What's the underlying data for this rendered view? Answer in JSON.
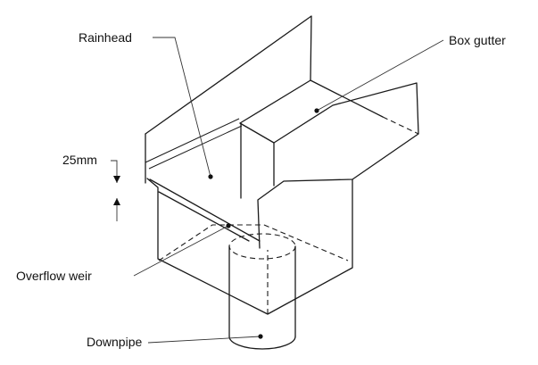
{
  "labels": {
    "rainhead": "Rainhead",
    "box_gutter": "Box gutter",
    "dimension": "25mm",
    "overflow_weir": "Overflow weir",
    "downpipe": "Downpipe"
  },
  "colors": {
    "line": "#1a1a1a",
    "background": "#ffffff"
  }
}
